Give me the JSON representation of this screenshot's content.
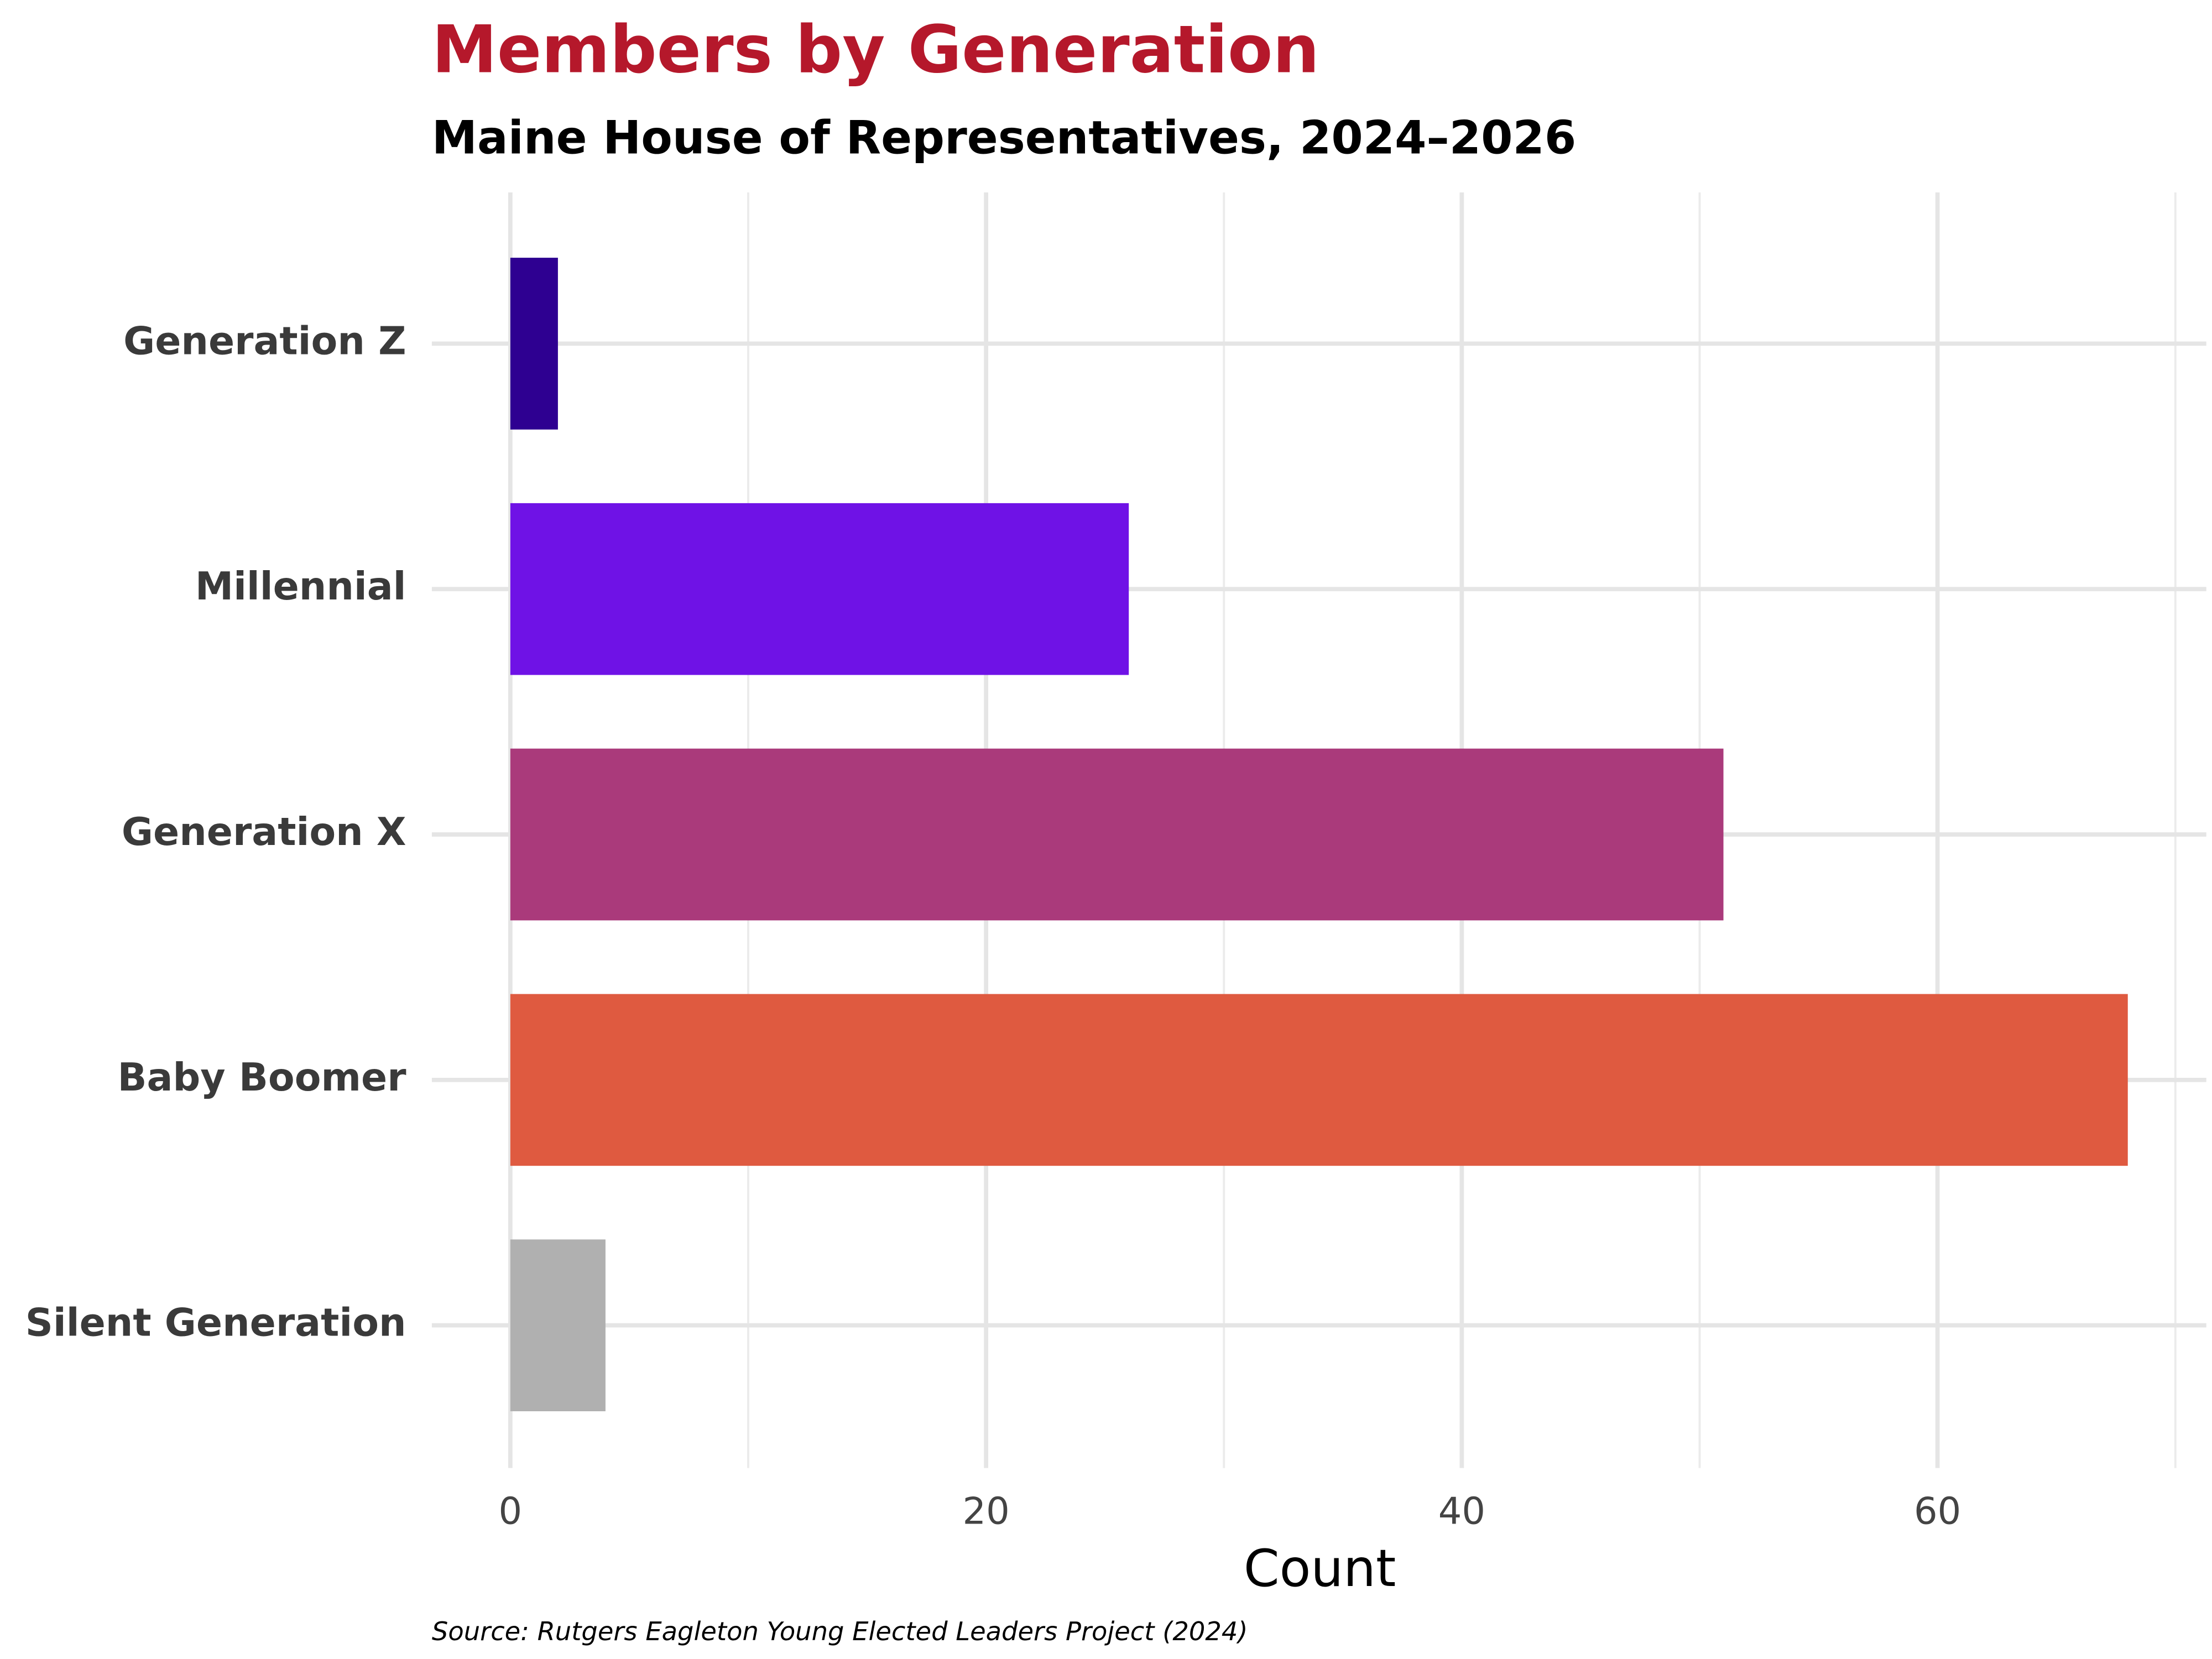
{
  "chart_data": {
    "type": "bar",
    "orientation": "horizontal",
    "title": "Members by Generation",
    "subtitle": "Maine House of Representatives, 2024–2026",
    "x_label": "Count",
    "source": "Source: Rutgers Eagleton Young Elected Leaders Project (2024)",
    "categories": [
      "Generation Z",
      "Millennial",
      "Generation X",
      "Baby Boomer",
      "Silent Generation"
    ],
    "values": [
      2,
      26,
      51,
      68,
      4
    ],
    "colors": [
      "#2e0091",
      "#6f12e6",
      "#aa3a7b",
      "#df5a40",
      "#b0b0b0"
    ],
    "xlim": [
      -3.3,
      71.3
    ],
    "xticks": [
      0,
      20,
      40,
      60
    ],
    "grid": true
  }
}
